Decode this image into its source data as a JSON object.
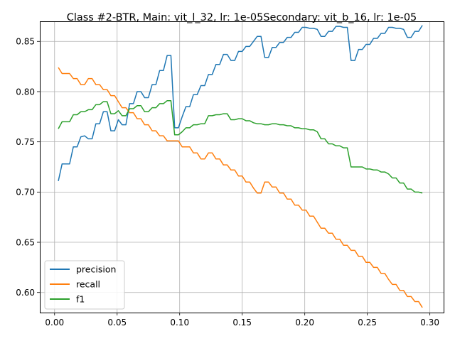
{
  "chart_data": {
    "type": "line",
    "title": "Class #2-BTR, Main: vit_l_32, lr: 1e-05Secondary: vit_b_16, lr: 1e-05",
    "xlabel": "",
    "ylabel": "",
    "xlim": [
      -0.0118,
      0.311
    ],
    "ylim": [
      0.58,
      0.87
    ],
    "x_ticks": [
      0.0,
      0.05,
      0.1,
      0.15,
      0.2,
      0.25,
      0.3
    ],
    "x_tick_labels": [
      "0.00",
      "0.05",
      "0.10",
      "0.15",
      "0.20",
      "0.25",
      "0.30"
    ],
    "y_ticks": [
      0.6,
      0.65,
      0.7,
      0.75,
      0.8,
      0.85
    ],
    "y_tick_labels": [
      "0.60",
      "0.65",
      "0.70",
      "0.75",
      "0.80",
      "0.85"
    ],
    "grid": true,
    "legend_position": "lower-left",
    "series": [
      {
        "name": "precision",
        "color": "#1f77b4",
        "points": [
          [
            0.003,
            0.711
          ],
          [
            0.006,
            0.728
          ],
          [
            0.012,
            0.728
          ],
          [
            0.015,
            0.745
          ],
          [
            0.018,
            0.745
          ],
          [
            0.021,
            0.755
          ],
          [
            0.024,
            0.756
          ],
          [
            0.027,
            0.753
          ],
          [
            0.03,
            0.753
          ],
          [
            0.033,
            0.768
          ],
          [
            0.036,
            0.768
          ],
          [
            0.039,
            0.78
          ],
          [
            0.042,
            0.78
          ],
          [
            0.045,
            0.761
          ],
          [
            0.048,
            0.761
          ],
          [
            0.051,
            0.772
          ],
          [
            0.054,
            0.767
          ],
          [
            0.057,
            0.767
          ],
          [
            0.06,
            0.788
          ],
          [
            0.063,
            0.788
          ],
          [
            0.066,
            0.8
          ],
          [
            0.069,
            0.8
          ],
          [
            0.072,
            0.794
          ],
          [
            0.075,
            0.794
          ],
          [
            0.078,
            0.807
          ],
          [
            0.081,
            0.807
          ],
          [
            0.084,
            0.821
          ],
          [
            0.087,
            0.821
          ],
          [
            0.09,
            0.836
          ],
          [
            0.093,
            0.836
          ],
          [
            0.096,
            0.764
          ],
          [
            0.099,
            0.764
          ],
          [
            0.102,
            0.775
          ],
          [
            0.105,
            0.785
          ],
          [
            0.108,
            0.785
          ],
          [
            0.111,
            0.797
          ],
          [
            0.114,
            0.797
          ],
          [
            0.117,
            0.806
          ],
          [
            0.12,
            0.806
          ],
          [
            0.123,
            0.817
          ],
          [
            0.126,
            0.817
          ],
          [
            0.129,
            0.827
          ],
          [
            0.132,
            0.827
          ],
          [
            0.135,
            0.837
          ],
          [
            0.138,
            0.837
          ],
          [
            0.141,
            0.831
          ],
          [
            0.144,
            0.831
          ],
          [
            0.147,
            0.84
          ],
          [
            0.15,
            0.84
          ],
          [
            0.153,
            0.845
          ],
          [
            0.156,
            0.845
          ],
          [
            0.159,
            0.85
          ],
          [
            0.162,
            0.855
          ],
          [
            0.165,
            0.855
          ],
          [
            0.168,
            0.834
          ],
          [
            0.171,
            0.834
          ],
          [
            0.174,
            0.844
          ],
          [
            0.177,
            0.844
          ],
          [
            0.18,
            0.849
          ],
          [
            0.183,
            0.849
          ],
          [
            0.186,
            0.854
          ],
          [
            0.189,
            0.854
          ],
          [
            0.192,
            0.859
          ],
          [
            0.195,
            0.859
          ],
          [
            0.198,
            0.864
          ],
          [
            0.201,
            0.864
          ],
          [
            0.204,
            0.863
          ],
          [
            0.207,
            0.863
          ],
          [
            0.21,
            0.862
          ],
          [
            0.213,
            0.855
          ],
          [
            0.216,
            0.855
          ],
          [
            0.219,
            0.86
          ],
          [
            0.222,
            0.86
          ],
          [
            0.225,
            0.865
          ],
          [
            0.228,
            0.865
          ],
          [
            0.231,
            0.864
          ],
          [
            0.234,
            0.864
          ],
          [
            0.237,
            0.831
          ],
          [
            0.24,
            0.831
          ],
          [
            0.243,
            0.842
          ],
          [
            0.246,
            0.842
          ],
          [
            0.249,
            0.847
          ],
          [
            0.252,
            0.847
          ],
          [
            0.255,
            0.853
          ],
          [
            0.258,
            0.853
          ],
          [
            0.261,
            0.858
          ],
          [
            0.264,
            0.858
          ],
          [
            0.267,
            0.864
          ],
          [
            0.27,
            0.864
          ],
          [
            0.273,
            0.863
          ],
          [
            0.276,
            0.863
          ],
          [
            0.279,
            0.862
          ],
          [
            0.282,
            0.854
          ],
          [
            0.285,
            0.854
          ],
          [
            0.288,
            0.86
          ],
          [
            0.291,
            0.86
          ],
          [
            0.294,
            0.866
          ]
        ]
      },
      {
        "name": "recall",
        "color": "#ff7f0e",
        "points": [
          [
            0.003,
            0.824
          ],
          [
            0.006,
            0.818
          ],
          [
            0.012,
            0.818
          ],
          [
            0.015,
            0.813
          ],
          [
            0.018,
            0.813
          ],
          [
            0.021,
            0.807
          ],
          [
            0.024,
            0.807
          ],
          [
            0.027,
            0.813
          ],
          [
            0.03,
            0.813
          ],
          [
            0.033,
            0.807
          ],
          [
            0.036,
            0.807
          ],
          [
            0.039,
            0.802
          ],
          [
            0.042,
            0.802
          ],
          [
            0.045,
            0.796
          ],
          [
            0.048,
            0.796
          ],
          [
            0.051,
            0.79
          ],
          [
            0.054,
            0.784
          ],
          [
            0.057,
            0.784
          ],
          [
            0.06,
            0.779
          ],
          [
            0.063,
            0.779
          ],
          [
            0.066,
            0.773
          ],
          [
            0.069,
            0.773
          ],
          [
            0.072,
            0.767
          ],
          [
            0.075,
            0.767
          ],
          [
            0.078,
            0.761
          ],
          [
            0.081,
            0.761
          ],
          [
            0.084,
            0.756
          ],
          [
            0.087,
            0.756
          ],
          [
            0.09,
            0.751
          ],
          [
            0.093,
            0.751
          ],
          [
            0.096,
            0.751
          ],
          [
            0.099,
            0.751
          ],
          [
            0.102,
            0.745
          ],
          [
            0.105,
            0.745
          ],
          [
            0.108,
            0.745
          ],
          [
            0.111,
            0.739
          ],
          [
            0.114,
            0.739
          ],
          [
            0.117,
            0.733
          ],
          [
            0.12,
            0.733
          ],
          [
            0.123,
            0.739
          ],
          [
            0.126,
            0.739
          ],
          [
            0.129,
            0.733
          ],
          [
            0.132,
            0.733
          ],
          [
            0.135,
            0.727
          ],
          [
            0.138,
            0.727
          ],
          [
            0.141,
            0.722
          ],
          [
            0.144,
            0.722
          ],
          [
            0.147,
            0.716
          ],
          [
            0.15,
            0.716
          ],
          [
            0.153,
            0.71
          ],
          [
            0.156,
            0.71
          ],
          [
            0.159,
            0.704
          ],
          [
            0.162,
            0.699
          ],
          [
            0.165,
            0.699
          ],
          [
            0.168,
            0.71
          ],
          [
            0.171,
            0.71
          ],
          [
            0.174,
            0.705
          ],
          [
            0.177,
            0.705
          ],
          [
            0.18,
            0.699
          ],
          [
            0.183,
            0.699
          ],
          [
            0.186,
            0.693
          ],
          [
            0.189,
            0.693
          ],
          [
            0.192,
            0.687
          ],
          [
            0.195,
            0.687
          ],
          [
            0.198,
            0.682
          ],
          [
            0.201,
            0.682
          ],
          [
            0.204,
            0.676
          ],
          [
            0.207,
            0.676
          ],
          [
            0.21,
            0.67
          ],
          [
            0.213,
            0.664
          ],
          [
            0.216,
            0.664
          ],
          [
            0.219,
            0.659
          ],
          [
            0.222,
            0.659
          ],
          [
            0.225,
            0.653
          ],
          [
            0.228,
            0.653
          ],
          [
            0.231,
            0.647
          ],
          [
            0.234,
            0.647
          ],
          [
            0.237,
            0.642
          ],
          [
            0.24,
            0.642
          ],
          [
            0.243,
            0.636
          ],
          [
            0.246,
            0.636
          ],
          [
            0.249,
            0.63
          ],
          [
            0.252,
            0.63
          ],
          [
            0.255,
            0.625
          ],
          [
            0.258,
            0.625
          ],
          [
            0.261,
            0.619
          ],
          [
            0.264,
            0.619
          ],
          [
            0.267,
            0.613
          ],
          [
            0.27,
            0.608
          ],
          [
            0.273,
            0.608
          ],
          [
            0.276,
            0.602
          ],
          [
            0.279,
            0.602
          ],
          [
            0.282,
            0.596
          ],
          [
            0.285,
            0.596
          ],
          [
            0.288,
            0.591
          ],
          [
            0.291,
            0.591
          ],
          [
            0.294,
            0.585
          ]
        ]
      },
      {
        "name": "f1",
        "color": "#2ca02c",
        "points": [
          [
            0.003,
            0.763
          ],
          [
            0.006,
            0.77
          ],
          [
            0.012,
            0.77
          ],
          [
            0.015,
            0.777
          ],
          [
            0.018,
            0.777
          ],
          [
            0.021,
            0.78
          ],
          [
            0.024,
            0.78
          ],
          [
            0.027,
            0.782
          ],
          [
            0.03,
            0.782
          ],
          [
            0.033,
            0.787
          ],
          [
            0.036,
            0.787
          ],
          [
            0.039,
            0.79
          ],
          [
            0.042,
            0.79
          ],
          [
            0.045,
            0.778
          ],
          [
            0.048,
            0.778
          ],
          [
            0.051,
            0.781
          ],
          [
            0.054,
            0.776
          ],
          [
            0.057,
            0.776
          ],
          [
            0.06,
            0.783
          ],
          [
            0.063,
            0.783
          ],
          [
            0.066,
            0.786
          ],
          [
            0.069,
            0.786
          ],
          [
            0.072,
            0.78
          ],
          [
            0.075,
            0.78
          ],
          [
            0.078,
            0.784
          ],
          [
            0.081,
            0.784
          ],
          [
            0.084,
            0.788
          ],
          [
            0.087,
            0.788
          ],
          [
            0.09,
            0.791
          ],
          [
            0.093,
            0.791
          ],
          [
            0.096,
            0.757
          ],
          [
            0.099,
            0.757
          ],
          [
            0.102,
            0.76
          ],
          [
            0.105,
            0.764
          ],
          [
            0.108,
            0.764
          ],
          [
            0.111,
            0.767
          ],
          [
            0.114,
            0.767
          ],
          [
            0.117,
            0.768
          ],
          [
            0.12,
            0.768
          ],
          [
            0.123,
            0.776
          ],
          [
            0.126,
            0.776
          ],
          [
            0.129,
            0.777
          ],
          [
            0.132,
            0.777
          ],
          [
            0.135,
            0.778
          ],
          [
            0.138,
            0.778
          ],
          [
            0.141,
            0.772
          ],
          [
            0.144,
            0.772
          ],
          [
            0.147,
            0.773
          ],
          [
            0.15,
            0.773
          ],
          [
            0.153,
            0.771
          ],
          [
            0.156,
            0.771
          ],
          [
            0.159,
            0.769
          ],
          [
            0.162,
            0.768
          ],
          [
            0.165,
            0.768
          ],
          [
            0.168,
            0.767
          ],
          [
            0.171,
            0.767
          ],
          [
            0.174,
            0.768
          ],
          [
            0.177,
            0.768
          ],
          [
            0.18,
            0.767
          ],
          [
            0.183,
            0.767
          ],
          [
            0.186,
            0.766
          ],
          [
            0.189,
            0.766
          ],
          [
            0.192,
            0.764
          ],
          [
            0.195,
            0.764
          ],
          [
            0.198,
            0.763
          ],
          [
            0.201,
            0.763
          ],
          [
            0.204,
            0.762
          ],
          [
            0.207,
            0.762
          ],
          [
            0.21,
            0.76
          ],
          [
            0.213,
            0.753
          ],
          [
            0.216,
            0.753
          ],
          [
            0.219,
            0.748
          ],
          [
            0.222,
            0.748
          ],
          [
            0.225,
            0.746
          ],
          [
            0.228,
            0.746
          ],
          [
            0.231,
            0.744
          ],
          [
            0.234,
            0.744
          ],
          [
            0.237,
            0.725
          ],
          [
            0.24,
            0.725
          ],
          [
            0.243,
            0.725
          ],
          [
            0.246,
            0.725
          ],
          [
            0.249,
            0.723
          ],
          [
            0.252,
            0.723
          ],
          [
            0.255,
            0.722
          ],
          [
            0.258,
            0.722
          ],
          [
            0.261,
            0.72
          ],
          [
            0.264,
            0.72
          ],
          [
            0.267,
            0.718
          ],
          [
            0.27,
            0.714
          ],
          [
            0.273,
            0.714
          ],
          [
            0.276,
            0.709
          ],
          [
            0.279,
            0.709
          ],
          [
            0.282,
            0.703
          ],
          [
            0.285,
            0.703
          ],
          [
            0.288,
            0.7
          ],
          [
            0.291,
            0.7
          ],
          [
            0.294,
            0.699
          ]
        ]
      }
    ]
  }
}
